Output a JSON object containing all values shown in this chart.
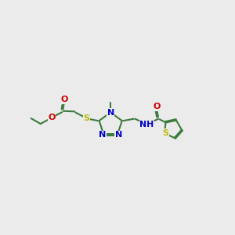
{
  "bg_color": "#EBEBEB",
  "bond_color": "#3d7a3d",
  "N_color": "#0000CC",
  "O_color": "#CC0000",
  "S_color": "#BBBB00",
  "lw": 1.5,
  "fig_width": 3.0,
  "fig_height": 3.0,
  "xlim": [
    0,
    10
  ],
  "ylim": [
    2.5,
    7.5
  ]
}
